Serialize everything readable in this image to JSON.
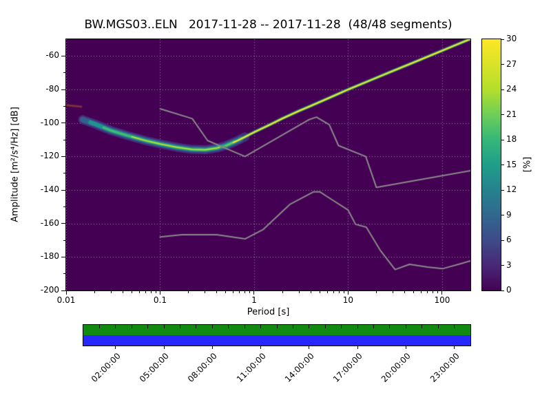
{
  "title": "BW.MGS03..ELN   2017-11-28 -- 2017-11-28  (48/48 segments)",
  "chart_data": {
    "type": "heatmap",
    "title": "BW.MGS03..ELN   2017-11-28 -- 2017-11-28  (48/48 segments)",
    "xlabel": "Period [s]",
    "ylabel": "Amplitude [m²/s⁴/Hz]  [dB]",
    "x_scale": "log",
    "xlim": [
      0.01,
      200
    ],
    "ylim": [
      -200,
      -50
    ],
    "x_ticks": [
      {
        "v": 0.01,
        "label": "0.01"
      },
      {
        "v": 0.1,
        "label": "0.1"
      },
      {
        "v": 1,
        "label": "1"
      },
      {
        "v": 10,
        "label": "10"
      },
      {
        "v": 100,
        "label": "100"
      }
    ],
    "y_ticks": [
      -200,
      -180,
      -160,
      -140,
      -120,
      -100,
      -80,
      -60
    ],
    "grid": true,
    "grid_color": "rgba(255,255,224,0.5)",
    "background_color": "#440154",
    "mode_curve": [
      [
        0.015,
        -98
      ],
      [
        0.02,
        -100.5
      ],
      [
        0.03,
        -104.5
      ],
      [
        0.045,
        -107.5
      ],
      [
        0.07,
        -110.5
      ],
      [
        0.1,
        -112.5
      ],
      [
        0.15,
        -114.5
      ],
      [
        0.22,
        -115.8
      ],
      [
        0.3,
        -116
      ],
      [
        0.4,
        -115
      ],
      [
        0.5,
        -113.5
      ],
      [
        0.65,
        -110.8
      ],
      [
        0.8,
        -108.3
      ],
      [
        1,
        -105.5
      ],
      [
        1.5,
        -100.8
      ],
      [
        2,
        -97.3
      ],
      [
        3,
        -92.8
      ],
      [
        4,
        -89.8
      ],
      [
        6,
        -85.5
      ],
      [
        8,
        -82.4
      ],
      [
        10,
        -80
      ],
      [
        15,
        -75.9
      ],
      [
        20,
        -73
      ],
      [
        30,
        -68.9
      ],
      [
        50,
        -63.8
      ],
      [
        70,
        -60.4
      ],
      [
        100,
        -56.8
      ],
      [
        140,
        -53.4
      ],
      [
        200,
        -49.8
      ]
    ],
    "band_layers": [
      {
        "range": [
          0.014,
          0.8
        ],
        "color": "rgba(69,50,127,0.9)",
        "width": 13
      },
      {
        "range": [
          0.015,
          0.72
        ],
        "color": "#355f8d",
        "width": 8.5
      },
      {
        "range": [
          0.018,
          0.62
        ],
        "color": "#1f948c",
        "width": 5.5
      },
      {
        "range": [
          0.025,
          0.55
        ],
        "color": "#40bd72",
        "width": 3.2
      },
      {
        "range": [
          0.05,
          0.48
        ],
        "color": "#bddf26",
        "width": 1.7
      },
      {
        "range": [
          0.45,
          200
        ],
        "color": "rgba(31,148,140,0.6)",
        "width": 5
      },
      {
        "range": [
          0.5,
          200
        ],
        "color": "#5ec962",
        "width": 3
      },
      {
        "range": [
          0.6,
          200
        ],
        "color": "#fde725",
        "width": 1.8
      }
    ],
    "extra_segment": {
      "points": [
        [
          0.01,
          -89.3
        ],
        [
          0.0145,
          -90.3
        ]
      ],
      "color": "#7c3137",
      "width": 3
    },
    "noise_models": {
      "color": "#8a8a8a",
      "width": 2,
      "high": [
        [
          0.1,
          -91.5
        ],
        [
          0.22,
          -97.4
        ],
        [
          0.32,
          -110.5
        ],
        [
          0.8,
          -120
        ],
        [
          3.8,
          -98.1
        ],
        [
          4.6,
          -96.5
        ],
        [
          6.3,
          -101
        ],
        [
          7.9,
          -113.5
        ],
        [
          15.4,
          -120
        ],
        [
          20,
          -138.5
        ],
        [
          200,
          -128.5
        ]
      ],
      "low": [
        [
          0.1,
          -168
        ],
        [
          0.17,
          -166.7
        ],
        [
          0.4,
          -166.7
        ],
        [
          0.8,
          -169.2
        ],
        [
          1.24,
          -163.7
        ],
        [
          2.4,
          -148.6
        ],
        [
          4.3,
          -141.1
        ],
        [
          5,
          -141.1
        ],
        [
          6,
          -144
        ],
        [
          10,
          -152
        ],
        [
          12,
          -160.5
        ],
        [
          15.6,
          -162.2
        ],
        [
          21.9,
          -175.9
        ],
        [
          31.6,
          -187.5
        ],
        [
          45,
          -184.4
        ],
        [
          70,
          -186
        ],
        [
          101,
          -187
        ],
        [
          154,
          -184.2
        ],
        [
          200,
          -182.3
        ]
      ]
    },
    "colorbar": {
      "label": "[%]",
      "vmin": 0,
      "vmax": 30,
      "ticks": [
        0,
        3,
        6,
        9,
        12,
        15,
        18,
        21,
        24,
        27,
        30
      ],
      "gradient": [
        [
          0,
          "#440154"
        ],
        [
          0.1,
          "#482878"
        ],
        [
          0.2,
          "#3e4a89"
        ],
        [
          0.3,
          "#31688e"
        ],
        [
          0.4,
          "#26828e"
        ],
        [
          0.5,
          "#1f9e89"
        ],
        [
          0.6,
          "#35b779"
        ],
        [
          0.7,
          "#6ece58"
        ],
        [
          0.8,
          "#b5de2b"
        ],
        [
          1,
          "#fde725"
        ]
      ]
    }
  },
  "timebar": {
    "top_color": "#108a10",
    "bottom_color": "#2727ff",
    "hours_total": 24,
    "labels": [
      {
        "hour": 2,
        "text": "02:00:00"
      },
      {
        "hour": 5,
        "text": "05:00:00"
      },
      {
        "hour": 8,
        "text": "08:00:00"
      },
      {
        "hour": 11,
        "text": "11:00:00"
      },
      {
        "hour": 14,
        "text": "14:00:00"
      },
      {
        "hour": 17,
        "text": "17:00:00"
      },
      {
        "hour": 20,
        "text": "20:00:00"
      },
      {
        "hour": 23,
        "text": "23:00:00"
      }
    ]
  }
}
